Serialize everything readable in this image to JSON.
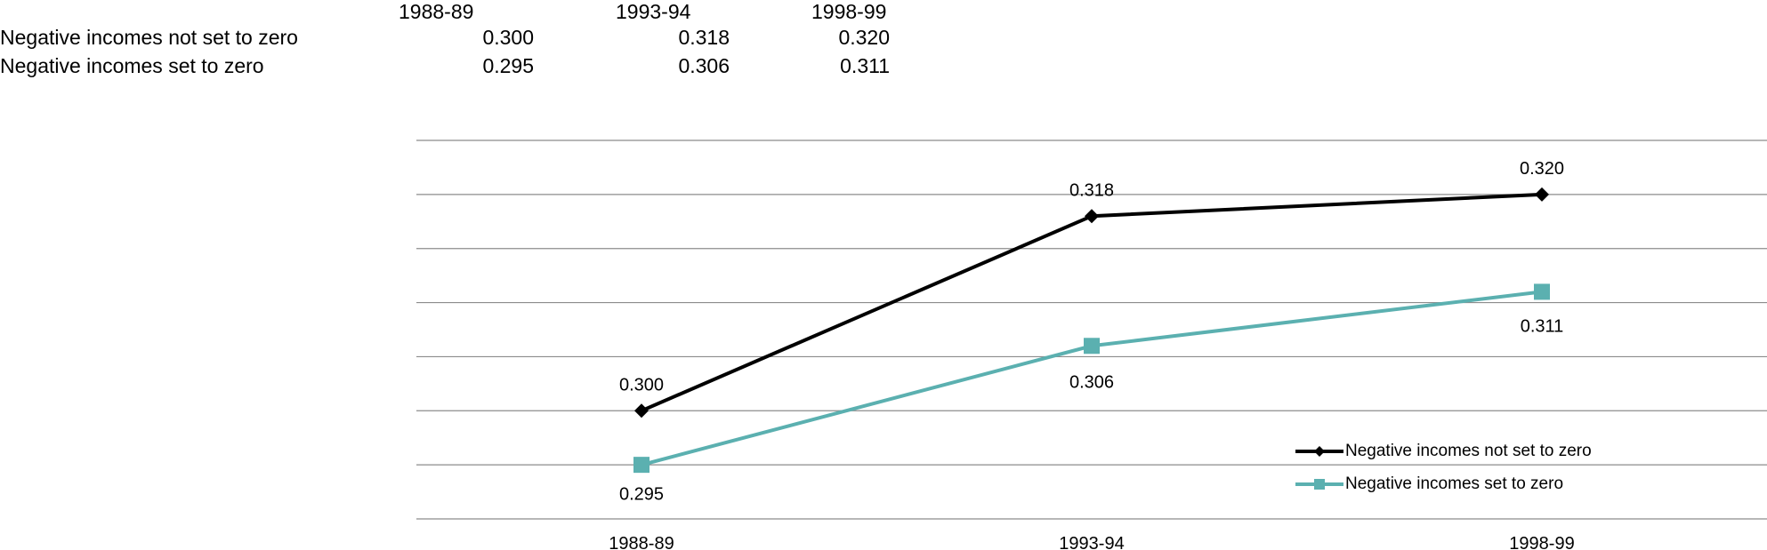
{
  "table": {
    "headers": [
      "1988-89",
      "1993-94",
      "1998-99"
    ],
    "rows": [
      {
        "label": "Negative incomes not set to zero",
        "values": [
          "0.300",
          "0.318",
          "0.320"
        ]
      },
      {
        "label": "Negative incomes set to zero",
        "values": [
          "0.295",
          "0.306",
          "0.311"
        ]
      }
    ]
  },
  "chart_data": {
    "type": "line",
    "categories": [
      "1988-89",
      "1993-94",
      "1998-99"
    ],
    "series": [
      {
        "name": "Negative incomes not set to zero",
        "values": [
          0.3,
          0.318,
          0.32
        ],
        "labels": [
          "0.300",
          "0.318",
          "0.320"
        ],
        "color": "#000000",
        "marker": "diamond"
      },
      {
        "name": "Negative incomes set to zero",
        "values": [
          0.295,
          0.306,
          0.311
        ],
        "labels": [
          "0.295",
          "0.306",
          "0.311"
        ],
        "color": "#5bb0b0",
        "marker": "square"
      }
    ],
    "title": "",
    "xlabel": "",
    "ylabel": "",
    "ylim": [
      0.29,
      0.325
    ],
    "grid": true,
    "legend": "bottom-right"
  }
}
